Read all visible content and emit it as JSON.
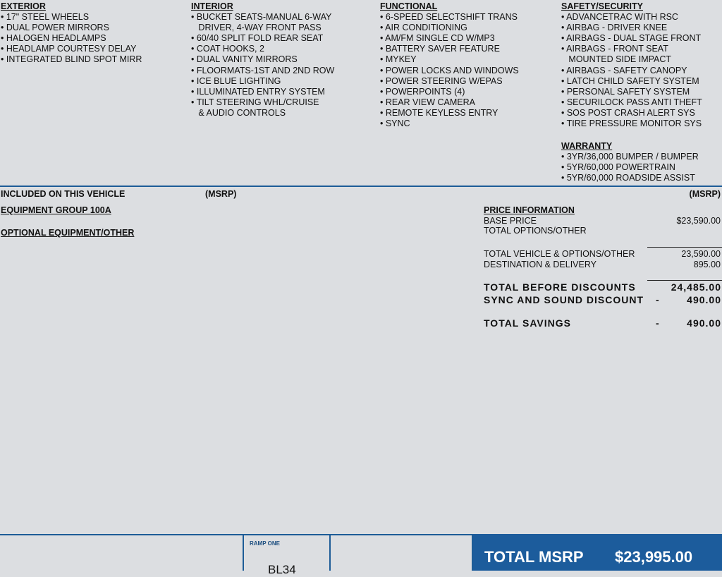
{
  "features": [
    {
      "heading": "EXTERIOR",
      "items": [
        "• 17\" STEEL WHEELS",
        "• DUAL POWER MIRRORS",
        "• HALOGEN HEADLAMPS",
        "• HEADLAMP COURTESY DELAY",
        "• INTEGRATED BLIND SPOT MIRR"
      ]
    },
    {
      "heading": "INTERIOR",
      "items": [
        "• BUCKET SEATS-MANUAL 6-WAY",
        "   DRIVER, 4-WAY FRONT PASS",
        "• 60/40 SPLIT FOLD REAR SEAT",
        "• COAT HOOKS, 2",
        "• DUAL VANITY MIRRORS",
        "• FLOORMATS-1ST AND 2ND ROW",
        "• ICE BLUE LIGHTING",
        "• ILLUMINATED ENTRY SYSTEM",
        "• TILT STEERING WHL/CRUISE",
        "   & AUDIO CONTROLS"
      ]
    },
    {
      "heading": "FUNCTIONAL",
      "items": [
        "• 6-SPEED SELECTSHIFT TRANS",
        "• AIR CONDITIONING",
        "• AM/FM SINGLE CD W/MP3",
        "• BATTERY SAVER FEATURE",
        "• MYKEY",
        "• POWER LOCKS AND WINDOWS",
        "• POWER STEERING W/EPAS",
        "• POWERPOINTS (4)",
        "• REAR VIEW CAMERA",
        "• REMOTE KEYLESS ENTRY",
        "• SYNC"
      ]
    },
    {
      "heading": "SAFETY/SECURITY",
      "items": [
        "• ADVANCETRAC WITH RSC",
        "• AIRBAG - DRIVER KNEE",
        "• AIRBAGS - DUAL STAGE FRONT",
        "• AIRBAGS - FRONT SEAT",
        "   MOUNTED SIDE IMPACT",
        "• AIRBAGS - SAFETY CANOPY",
        "• LATCH CHILD SAFETY SYSTEM",
        "• PERSONAL SAFETY SYSTEM",
        "• SECURILOCK PASS ANTI THEFT",
        "• SOS POST CRASH ALERT SYS",
        "• TIRE PRESSURE MONITOR SYS"
      ]
    }
  ],
  "warranty": {
    "heading": "WARRANTY",
    "items": [
      "• 3YR/36,000 BUMPER / BUMPER",
      "• 5YR/60,000 POWERTRAIN",
      "• 5YR/60,000 ROADSIDE ASSIST"
    ]
  },
  "included": {
    "title": "INCLUDED ON THIS VEHICLE",
    "msrp_left": "(MSRP)",
    "msrp_right": "(MSRP)",
    "group": "EQUIPMENT GROUP 100A",
    "optional": "OPTIONAL EQUIPMENT/OTHER"
  },
  "price": {
    "heading": "PRICE INFORMATION",
    "base_label": "BASE PRICE",
    "base_value": "$23,590.00",
    "options_label": "TOTAL OPTIONS/OTHER",
    "total_vehicle_label": "TOTAL VEHICLE & OPTIONS/OTHER",
    "total_vehicle_value": "23,590.00",
    "dest_label": "DESTINATION & DELIVERY",
    "dest_value": "895.00",
    "before_label": "TOTAL BEFORE DISCOUNTS",
    "before_value": "24,485.00",
    "discount_label": "SYNC AND SOUND DISCOUNT",
    "discount_sign": "-",
    "discount_value": "490.00",
    "savings_label": "TOTAL SAVINGS",
    "savings_sign": "-",
    "savings_value": "490.00"
  },
  "footer": {
    "ramp_label": "RAMP ONE",
    "ramp_code": "BL34",
    "total_label": "TOTAL MSRP",
    "total_value": "$23,995.00",
    "accent": "#1c5c9c"
  }
}
